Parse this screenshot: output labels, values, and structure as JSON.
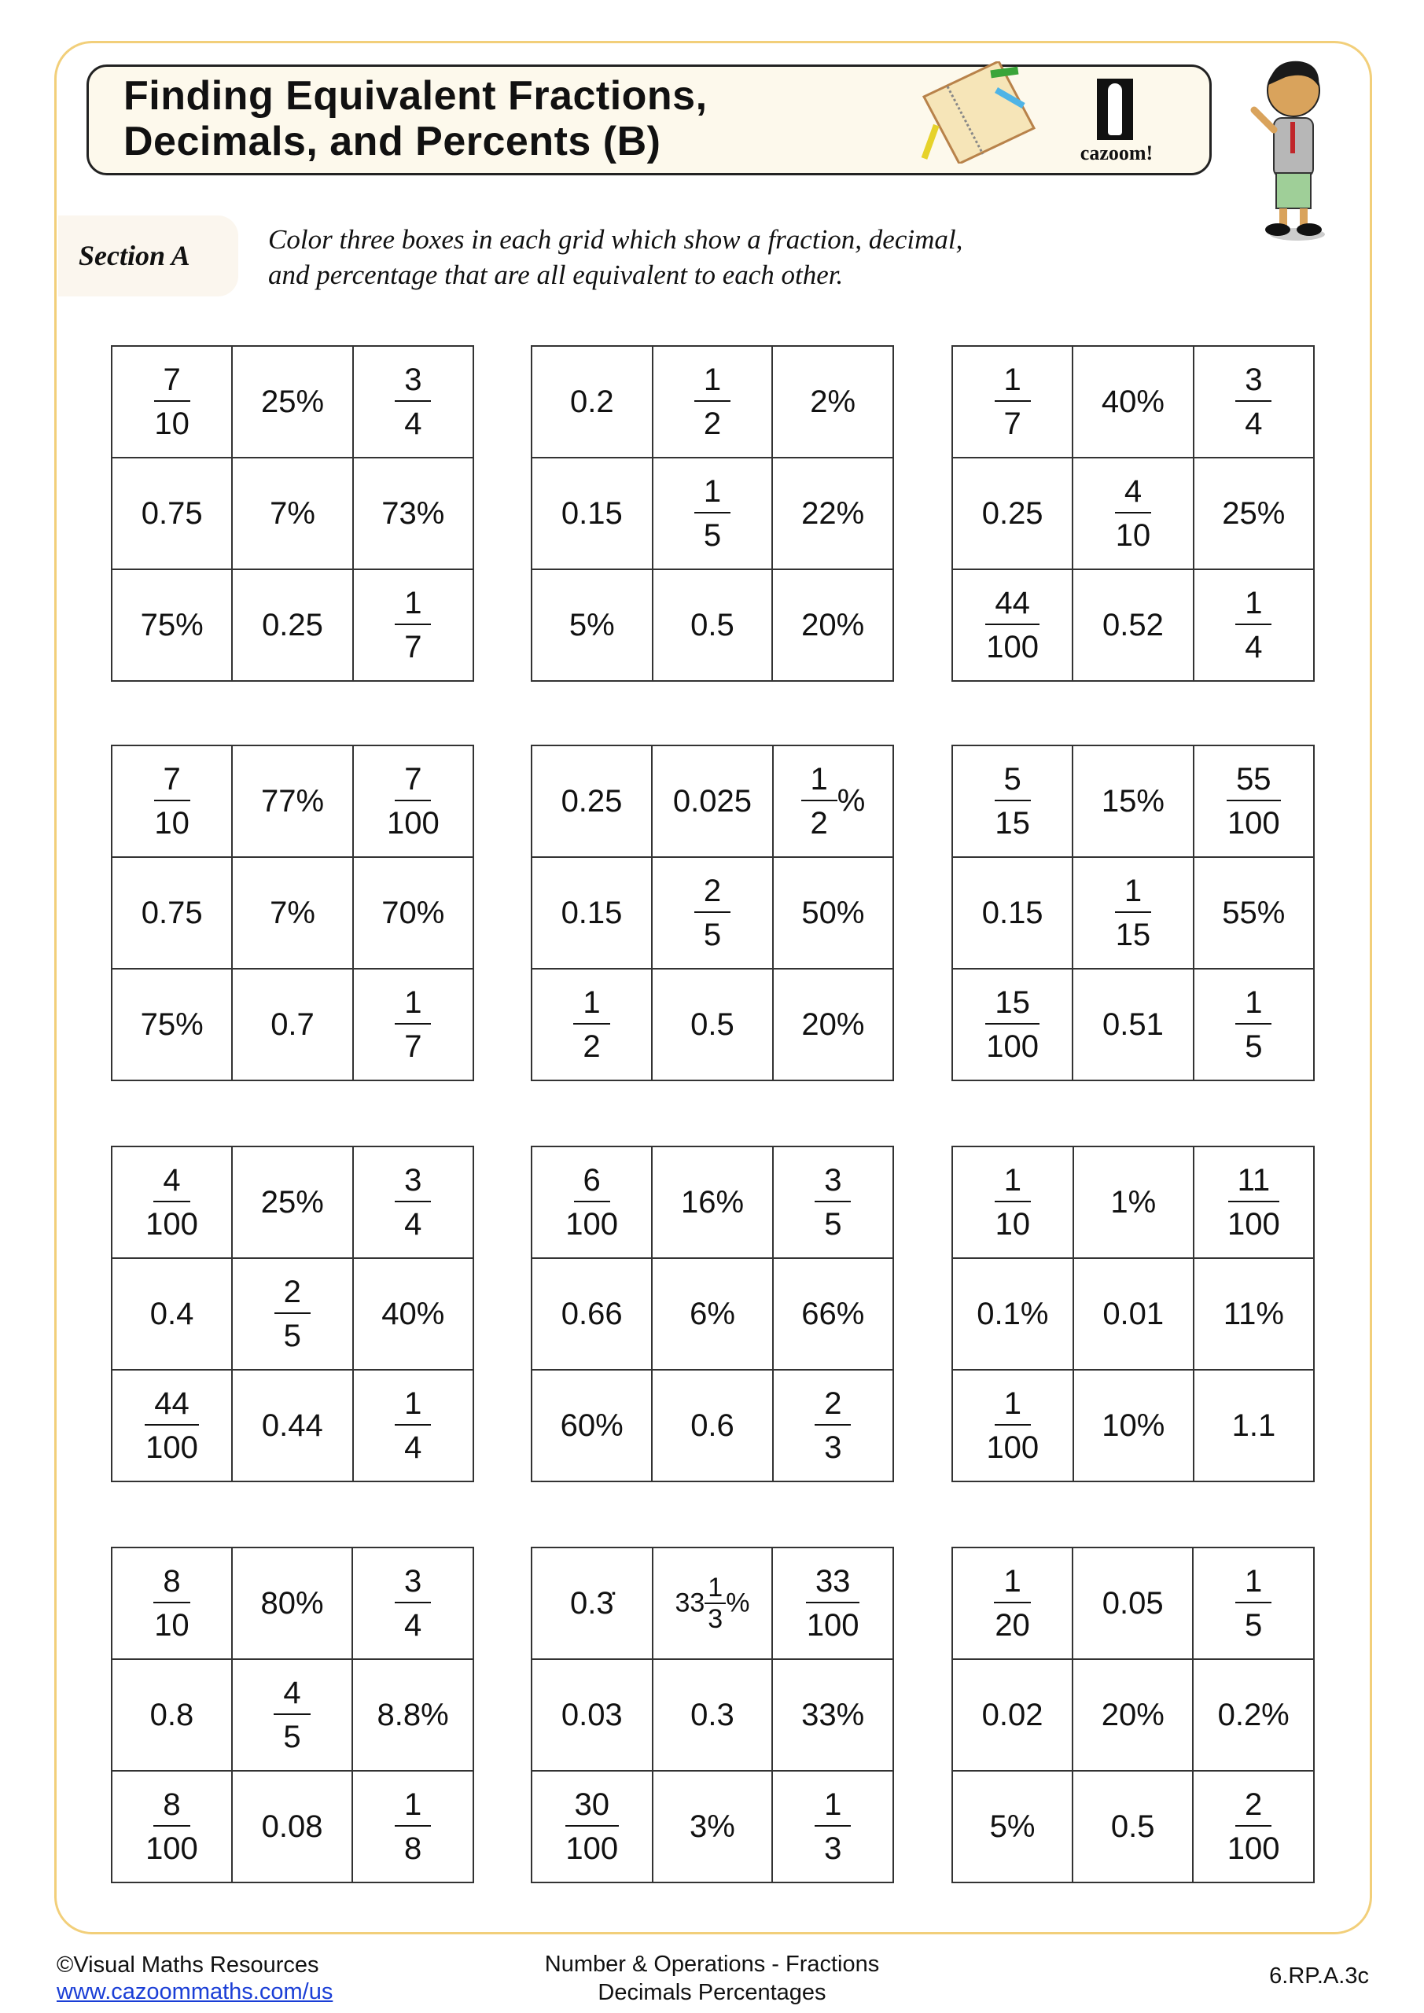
{
  "header": {
    "title_line1": "Finding Equivalent Fractions,",
    "title_line2": "Decimals, and Percents (B)",
    "logo_text": "cazoom!"
  },
  "section": {
    "label": "Section A",
    "instruction_line1": "Color three boxes in each grid which show a fraction, decimal,",
    "instruction_line2": "and percentage that are all equivalent to each other."
  },
  "grids": [
    [
      [
        {
          "num": "7",
          "den": "10"
        },
        {
          "text": "25%"
        },
        {
          "num": "3",
          "den": "4"
        }
      ],
      [
        {
          "text": "0.75"
        },
        {
          "text": "7%"
        },
        {
          "text": "73%"
        }
      ],
      [
        {
          "text": "75%"
        },
        {
          "text": "0.25"
        },
        {
          "num": "1",
          "den": "7"
        }
      ]
    ],
    [
      [
        {
          "text": "0.2"
        },
        {
          "num": "1",
          "den": "2"
        },
        {
          "text": "2%"
        }
      ],
      [
        {
          "text": "0.15"
        },
        {
          "num": "1",
          "den": "5"
        },
        {
          "text": "22%"
        }
      ],
      [
        {
          "text": "5%"
        },
        {
          "text": "0.5"
        },
        {
          "text": "20%"
        }
      ]
    ],
    [
      [
        {
          "num": "1",
          "den": "7"
        },
        {
          "text": "40%"
        },
        {
          "num": "3",
          "den": "4"
        }
      ],
      [
        {
          "text": "0.25"
        },
        {
          "num": "4",
          "den": "10"
        },
        {
          "text": "25%"
        }
      ],
      [
        {
          "num": "44",
          "den": "100"
        },
        {
          "text": "0.52"
        },
        {
          "num": "1",
          "den": "4"
        }
      ]
    ],
    [
      [
        {
          "num": "7",
          "den": "10"
        },
        {
          "text": "77%"
        },
        {
          "num": "7",
          "den": "100"
        }
      ],
      [
        {
          "text": "0.75"
        },
        {
          "text": "7%"
        },
        {
          "text": "70%"
        }
      ],
      [
        {
          "text": "75%"
        },
        {
          "text": "0.7"
        },
        {
          "num": "1",
          "den": "7"
        }
      ]
    ],
    [
      [
        {
          "text": "0.25"
        },
        {
          "text": "0.025"
        },
        {
          "num": "1",
          "den": "2",
          "suffix": "%"
        }
      ],
      [
        {
          "text": "0.15"
        },
        {
          "num": "2",
          "den": "5"
        },
        {
          "text": "50%"
        }
      ],
      [
        {
          "num": "1",
          "den": "2"
        },
        {
          "text": "0.5"
        },
        {
          "text": "20%"
        }
      ]
    ],
    [
      [
        {
          "num": "5",
          "den": "15"
        },
        {
          "text": "15%"
        },
        {
          "num": "55",
          "den": "100"
        }
      ],
      [
        {
          "text": "0.15"
        },
        {
          "num": "1",
          "den": "15"
        },
        {
          "text": "55%"
        }
      ],
      [
        {
          "num": "15",
          "den": "100"
        },
        {
          "text": "0.51"
        },
        {
          "num": "1",
          "den": "5"
        }
      ]
    ],
    [
      [
        {
          "num": "4",
          "den": "100"
        },
        {
          "text": "25%"
        },
        {
          "num": "3",
          "den": "4"
        }
      ],
      [
        {
          "text": "0.4"
        },
        {
          "num": "2",
          "den": "5"
        },
        {
          "text": "40%"
        }
      ],
      [
        {
          "num": "44",
          "den": "100"
        },
        {
          "text": "0.44"
        },
        {
          "num": "1",
          "den": "4"
        }
      ]
    ],
    [
      [
        {
          "num": "6",
          "den": "100"
        },
        {
          "text": "16%"
        },
        {
          "num": "3",
          "den": "5"
        }
      ],
      [
        {
          "text": "0.66"
        },
        {
          "text": "6%"
        },
        {
          "text": "66%"
        }
      ],
      [
        {
          "text": "60%"
        },
        {
          "text": "0.6"
        },
        {
          "num": "2",
          "den": "3"
        }
      ]
    ],
    [
      [
        {
          "num": "1",
          "den": "10"
        },
        {
          "text": "1%"
        },
        {
          "num": "11",
          "den": "100"
        }
      ],
      [
        {
          "text": "0.1%"
        },
        {
          "text": "0.01"
        },
        {
          "text": "11%"
        }
      ],
      [
        {
          "num": "1",
          "den": "100"
        },
        {
          "text": "10%"
        },
        {
          "text": "1.1"
        }
      ]
    ],
    [
      [
        {
          "num": "8",
          "den": "10"
        },
        {
          "text": "80%"
        },
        {
          "num": "3",
          "den": "4"
        }
      ],
      [
        {
          "text": "0.8"
        },
        {
          "num": "4",
          "den": "5"
        },
        {
          "text": "8.8%"
        }
      ],
      [
        {
          "num": "8",
          "den": "100"
        },
        {
          "text": "0.08"
        },
        {
          "num": "1",
          "den": "8"
        }
      ]
    ],
    [
      [
        {
          "text": "0.3̇"
        },
        {
          "whole": "33",
          "num": "1",
          "den": "3",
          "suffix": "%"
        },
        {
          "num": "33",
          "den": "100"
        }
      ],
      [
        {
          "text": "0.03"
        },
        {
          "text": "0.3"
        },
        {
          "text": "33%"
        }
      ],
      [
        {
          "num": "30",
          "den": "100"
        },
        {
          "text": "3%"
        },
        {
          "num": "1",
          "den": "3"
        }
      ]
    ],
    [
      [
        {
          "num": "1",
          "den": "20"
        },
        {
          "text": "0.05"
        },
        {
          "num": "1",
          "den": "5"
        }
      ],
      [
        {
          "text": "0.02"
        },
        {
          "text": "20%"
        },
        {
          "text": "0.2%"
        }
      ],
      [
        {
          "text": "5%"
        },
        {
          "text": "0.5"
        },
        {
          "num": "2",
          "den": "100"
        }
      ]
    ]
  ],
  "footer": {
    "copyright": "©Visual Maths Resources",
    "link": "www.cazoommaths.com/us",
    "topic_line1": "Number & Operations - Fractions",
    "topic_line2": "Decimals Percentages",
    "standard": "6.RP.A.3c"
  },
  "colors": {
    "frame": "#f2cf7a",
    "title_bg": "#fdf9ec",
    "link": "#1a3ed6"
  }
}
